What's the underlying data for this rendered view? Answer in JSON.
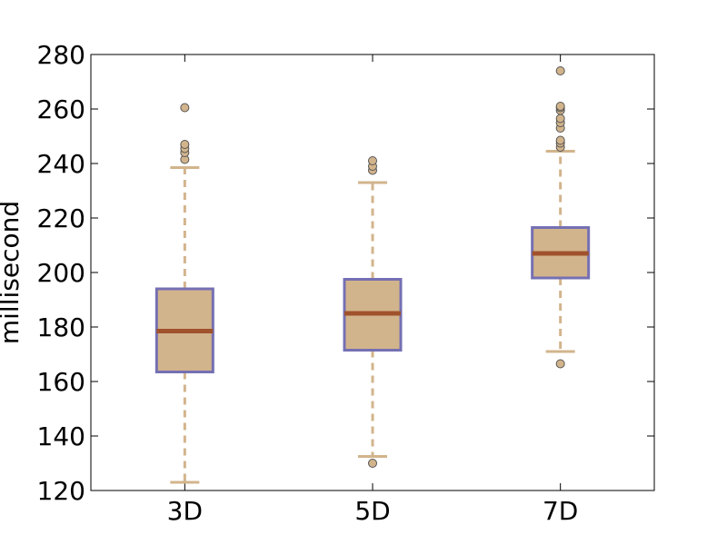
{
  "chart_data": {
    "type": "box",
    "title": "",
    "xlabel": "",
    "ylabel": "millisecond",
    "ylim": [
      120,
      280
    ],
    "yticks": [
      120,
      140,
      160,
      180,
      200,
      220,
      240,
      260,
      280
    ],
    "grid": false,
    "categories": [
      "3D",
      "5D",
      "7D"
    ],
    "boxes": [
      {
        "category": "3D",
        "whisker_low": 123,
        "q1": 163.5,
        "median": 178.5,
        "q3": 194,
        "whisker_high": 238.5,
        "outliers": [
          241.5,
          244,
          245.5,
          247,
          260.5
        ]
      },
      {
        "category": "5D",
        "whisker_low": 132.5,
        "q1": 171.5,
        "median": 185,
        "q3": 197.5,
        "whisker_high": 233,
        "outliers": [
          130,
          237.5,
          239,
          241
        ]
      },
      {
        "category": "7D",
        "whisker_low": 171,
        "q1": 198,
        "median": 207,
        "q3": 216.5,
        "whisker_high": 244.5,
        "outliers": [
          166.5,
          246,
          247.5,
          248.5,
          253,
          255,
          256.5,
          259.5,
          260.5,
          261,
          274
        ]
      }
    ],
    "colors": {
      "box_fill": "#d2b48c",
      "box_edge": "#7570b3",
      "median": "#a0522d",
      "whisker": "#d2b48c",
      "outlier_fill": "#d2b48c",
      "outlier_edge": "#555555"
    }
  }
}
